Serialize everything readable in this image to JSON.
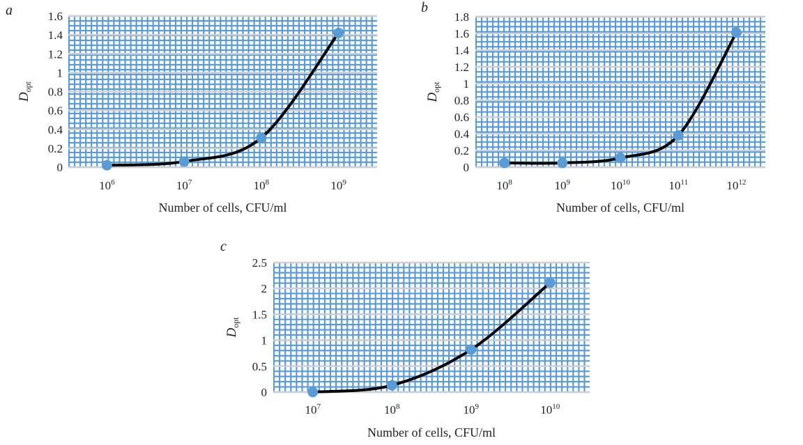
{
  "figure": {
    "colors": {
      "grid_minor": "#5b9bd5",
      "grid_major": "#d0d0d0",
      "line": "#000000",
      "marker": "#5b9bd5"
    }
  },
  "chart_data": [
    {
      "id": "a",
      "panel_label": "a",
      "type": "line",
      "categories": [
        "10^6",
        "10^7",
        "10^8",
        "10^9"
      ],
      "category_base": "10",
      "category_exponents": [
        "6",
        "7",
        "8",
        "9"
      ],
      "values": [
        0.02,
        0.06,
        0.31,
        1.42
      ],
      "xlabel": "Number of cells, CFU/ml",
      "ylabel": "D",
      "ylabel_subscript": "opt",
      "ylim": [
        0,
        1.6
      ],
      "yticks": [
        "0",
        "0.2",
        "0.4",
        "0.6",
        "0.8",
        "1",
        "1.2",
        "1.4",
        "1.6"
      ],
      "ytick_values": [
        0,
        0.2,
        0.4,
        0.6,
        0.8,
        1,
        1.2,
        1.4,
        1.6
      ],
      "grid": true,
      "smooth": true,
      "markers": true
    },
    {
      "id": "b",
      "panel_label": "b",
      "type": "line",
      "categories": [
        "10^8",
        "10^9",
        "10^10",
        "10^11",
        "10^12"
      ],
      "category_base": "10",
      "category_exponents": [
        "8",
        "9",
        "10",
        "11",
        "12"
      ],
      "values": [
        0.05,
        0.05,
        0.11,
        0.38,
        1.61
      ],
      "xlabel": "Number of cells, CFU/ml",
      "ylabel": "D",
      "ylabel_subscript": "opt",
      "ylim": [
        0,
        1.8
      ],
      "yticks": [
        "0",
        "0.2",
        "0.4",
        "0.6",
        "0.8",
        "1",
        "1.2",
        "1.4",
        "1.6",
        "1.8"
      ],
      "ytick_values": [
        0,
        0.2,
        0.4,
        0.6,
        0.8,
        1,
        1.2,
        1.4,
        1.6,
        1.8
      ],
      "grid": true,
      "smooth": true,
      "markers": true
    },
    {
      "id": "c",
      "panel_label": "c",
      "type": "line",
      "categories": [
        "10^7",
        "10^8",
        "10^9",
        "10^10"
      ],
      "category_base": "10",
      "category_exponents": [
        "7",
        "8",
        "9",
        "10"
      ],
      "values": [
        0.0,
        0.13,
        0.82,
        2.11
      ],
      "xlabel": "Number of cells, CFU/ml",
      "ylabel": "D",
      "ylabel_subscript": "opt",
      "ylim": [
        0,
        2.5
      ],
      "yticks": [
        "0",
        "0.5",
        "1",
        "1.5",
        "2",
        "2.5"
      ],
      "ytick_values": [
        0,
        0.5,
        1,
        1.5,
        2,
        2.5
      ],
      "grid": true,
      "smooth": true,
      "markers": true
    }
  ]
}
